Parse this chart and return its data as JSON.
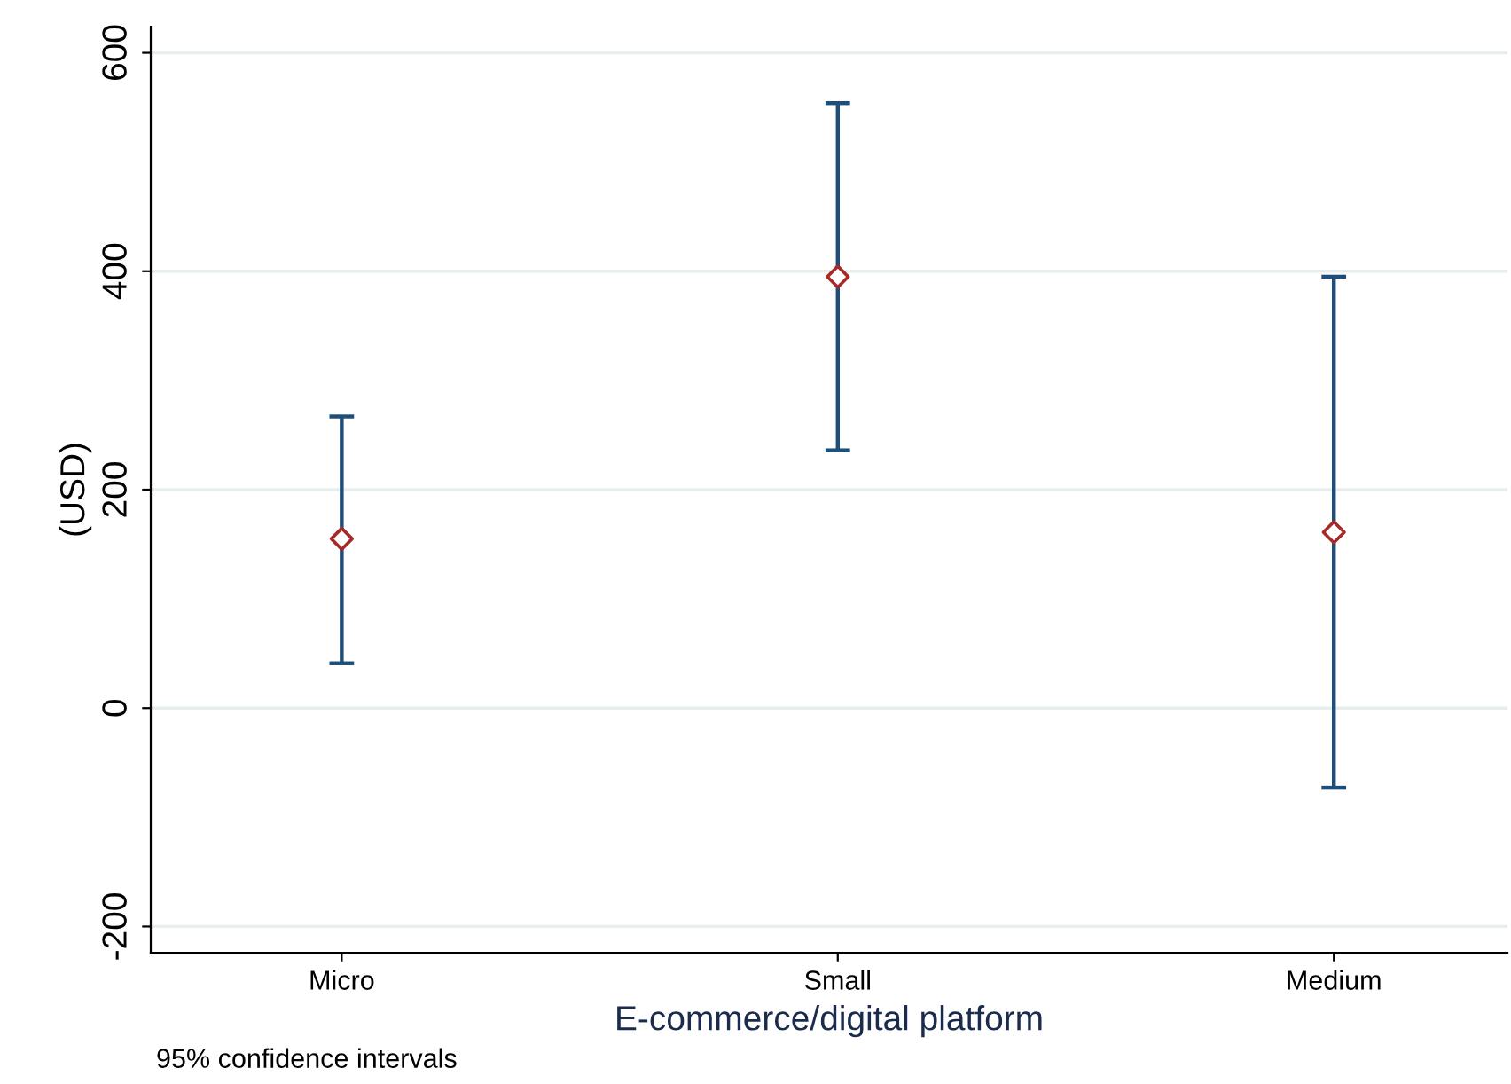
{
  "chart_data": {
    "type": "scatter",
    "xlabel": "E-commerce/digital platform",
    "ylabel": "(USD)",
    "categories": [
      "Micro",
      "Small",
      "Medium"
    ],
    "series": [
      {
        "color": "#a52a2a",
        "values": [
          155,
          395,
          161
        ],
        "errors": [
          [
            41,
            267
          ],
          [
            236,
            554
          ],
          [
            -73,
            395
          ]
        ]
      }
    ],
    "marker": "diamond",
    "ylim": [
      -224,
      624
    ],
    "yticks": [
      -200,
      0,
      200,
      400,
      600
    ],
    "grid": "y",
    "legend": false,
    "annotations": [
      "95% confidence intervals"
    ]
  }
}
